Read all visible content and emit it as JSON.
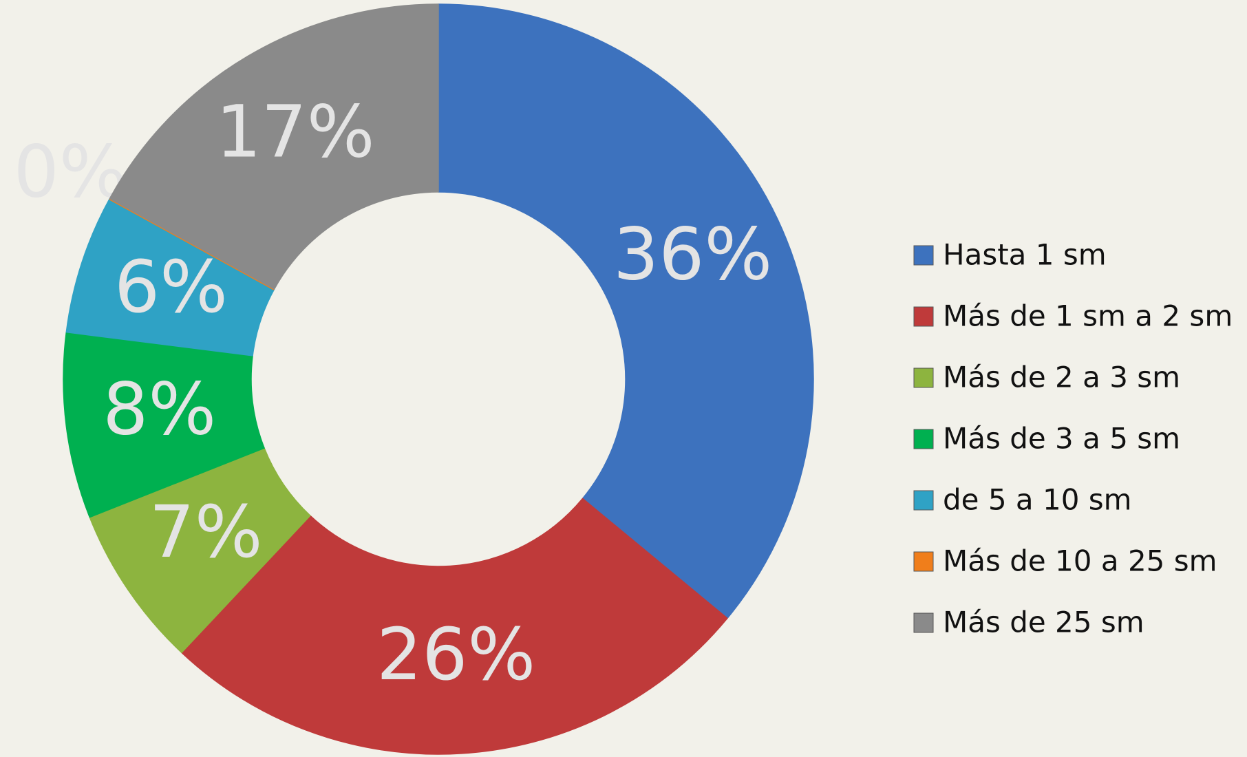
{
  "chart_data": {
    "type": "donut",
    "categories": [
      "Hasta 1 sm",
      "Más de 1 sm a 2 sm",
      "Más de 2 a 3 sm",
      "Más de 3 a 5 sm",
      "de 5 a 10 sm",
      "Más de 10 a 25 sm",
      "Más de 25 sm"
    ],
    "values": [
      36,
      26,
      7,
      8,
      6,
      0,
      17
    ],
    "value_labels": [
      "36%",
      "26%",
      "7%",
      "8%",
      "6%",
      "0%",
      "17%"
    ],
    "colors": [
      "#3d72be",
      "#bf3a3a",
      "#8db43f",
      "#00b050",
      "#2fa2c5",
      "#f07e1b",
      "#8a8a8a"
    ],
    "legend": "right"
  }
}
